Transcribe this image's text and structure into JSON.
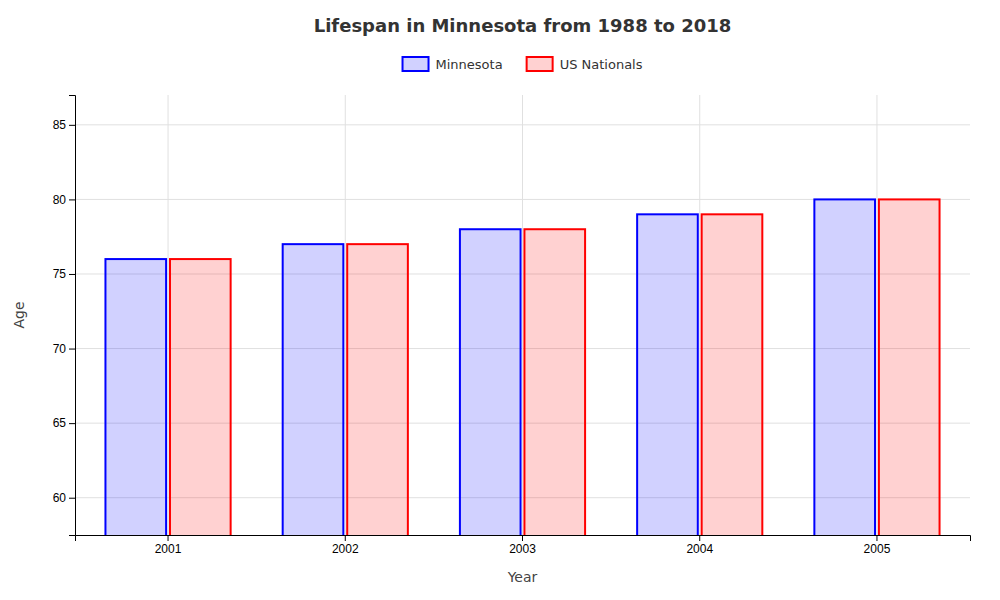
{
  "chart_data": {
    "type": "bar",
    "title": "Lifespan in Minnesota from 1988 to 2018",
    "xlabel": "Year",
    "ylabel": "Age",
    "categories": [
      "2001",
      "2002",
      "2003",
      "2004",
      "2005"
    ],
    "series": [
      {
        "name": "Minnesota",
        "color": "#0000ff",
        "values": [
          76.0,
          77.0,
          78.0,
          79.0,
          80.0
        ]
      },
      {
        "name": "US Nationals",
        "color": "#ff0000",
        "values": [
          76.0,
          77.0,
          78.0,
          79.0,
          80.0
        ]
      }
    ],
    "ylim": [
      57.5,
      87
    ],
    "yticks": [
      60,
      65,
      70,
      75,
      80,
      85
    ],
    "grid": true,
    "legend": "top"
  }
}
